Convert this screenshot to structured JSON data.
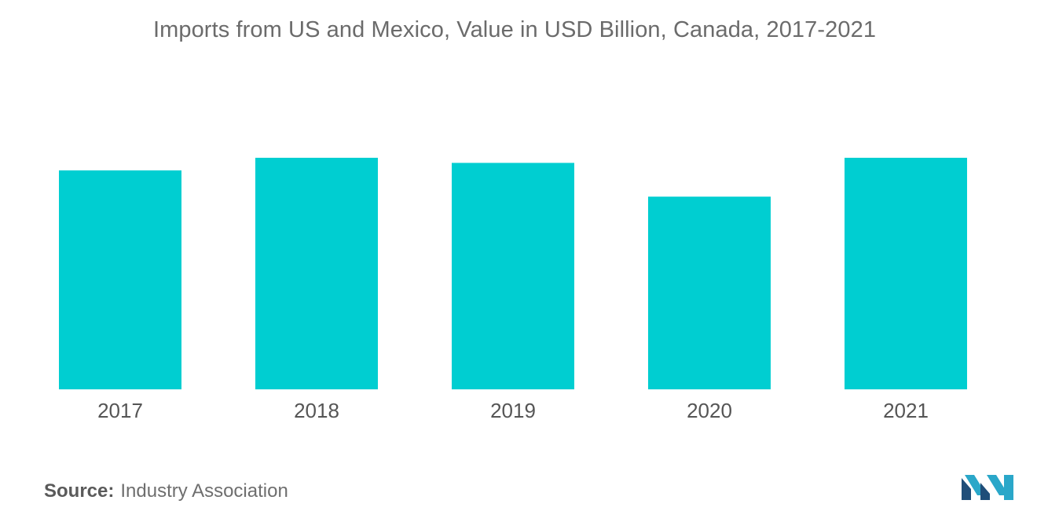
{
  "chart_data": {
    "type": "bar",
    "title": "Imports from US and Mexico, Value in USD Billion, Canada, 2017-2021",
    "categories": [
      "2017",
      "2018",
      "2019",
      "2020",
      "2021"
    ],
    "values": [
      259,
      274,
      268,
      228,
      274
    ],
    "xlabel": "",
    "ylabel": "",
    "ylim": [
      0,
      300
    ],
    "grid": false,
    "legend": "none",
    "bar_color": "#00ced1"
  },
  "source": {
    "label": "Source:",
    "value": "Industry Association"
  },
  "logo": {
    "icon": "mordor-intelligence-logo-icon",
    "colors": [
      "#1f4e79",
      "#2aa7c9"
    ]
  }
}
